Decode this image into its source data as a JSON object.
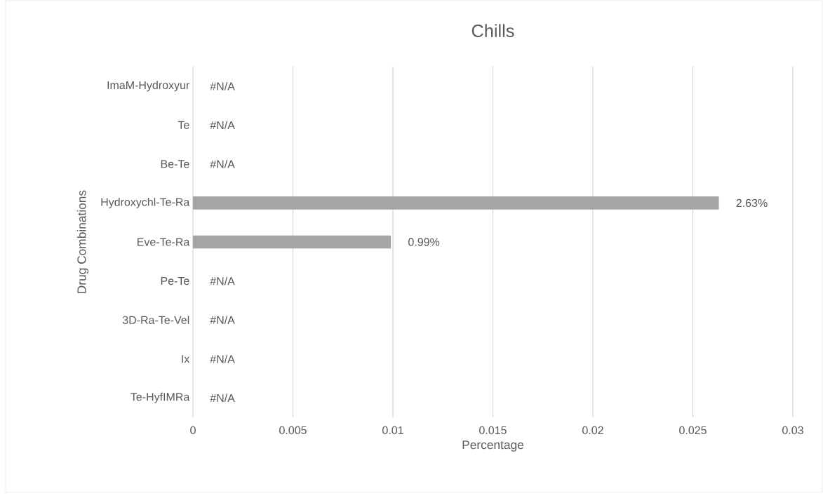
{
  "chart_data": {
    "type": "bar",
    "orientation": "horizontal",
    "title": "Chills",
    "xlabel": "Percentage",
    "ylabel": "Drug Combinations",
    "categories": [
      "ImaM-Hydroxyur",
      "Te",
      "Be-Te",
      "Hydroxychl-Te-Ra",
      "Eve-Te-Ra",
      "Pe-Te",
      "3D-Ra-Te-Vel",
      "Ix",
      "Te-HyfIMRa"
    ],
    "values": [
      null,
      null,
      null,
      0.0263,
      0.0099,
      null,
      null,
      null,
      null
    ],
    "value_labels": [
      "#N/A",
      "#N/A",
      "#N/A",
      "2.63%",
      "0.99%",
      "#N/A",
      "#N/A",
      "#N/A",
      "#N/A"
    ],
    "color": "#a5a5a5",
    "xlim": [
      0,
      0.03
    ],
    "xticks": [
      0,
      0.005,
      0.01,
      0.015,
      0.02,
      0.025,
      0.03
    ],
    "grid": "x"
  }
}
